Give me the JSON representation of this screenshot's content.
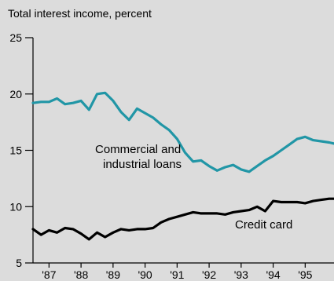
{
  "chart_data": {
    "type": "line",
    "title": "",
    "ylabel": "Total interest income, percent",
    "xlabel": "",
    "ylim": [
      5,
      25
    ],
    "xlim": [
      1986.5,
      1995.9
    ],
    "yticks": [
      5,
      10,
      15,
      20,
      25
    ],
    "xticks": [
      {
        "label": "'87",
        "value": 1987
      },
      {
        "label": "'88",
        "value": 1988
      },
      {
        "label": "'89",
        "value": 1989
      },
      {
        "label": "'90",
        "value": 1990
      },
      {
        "label": "'91",
        "value": 1991
      },
      {
        "label": "'92",
        "value": 1992
      },
      {
        "label": "'93",
        "value": 1993
      },
      {
        "label": "'94",
        "value": 1994
      },
      {
        "label": "'95",
        "value": 1995
      }
    ],
    "grid": false,
    "legend": "none",
    "series": [
      {
        "name": "Commercial and industrial loans",
        "label_lines": [
          "Commercial and",
          "industrial loans"
        ],
        "color": "#2196a6",
        "x": [
          1986.5,
          1986.75,
          1987.0,
          1987.25,
          1987.5,
          1987.75,
          1988.0,
          1988.25,
          1988.5,
          1988.75,
          1989.0,
          1989.25,
          1989.5,
          1989.75,
          1990.0,
          1990.25,
          1990.5,
          1990.75,
          1991.0,
          1991.25,
          1991.5,
          1991.75,
          1992.0,
          1992.25,
          1992.5,
          1992.75,
          1993.0,
          1993.25,
          1993.5,
          1993.75,
          1994.0,
          1994.25,
          1994.5,
          1994.75,
          1995.0,
          1995.25,
          1995.5,
          1995.75,
          1995.9
        ],
        "y": [
          19.2,
          19.3,
          19.3,
          19.6,
          19.1,
          19.2,
          19.4,
          18.6,
          20.0,
          20.1,
          19.4,
          18.4,
          17.7,
          18.7,
          18.3,
          17.9,
          17.3,
          16.8,
          16.0,
          14.8,
          14.0,
          14.1,
          13.6,
          13.2,
          13.5,
          13.7,
          13.3,
          13.1,
          13.6,
          14.1,
          14.5,
          15.0,
          15.5,
          16.0,
          16.2,
          15.9,
          15.8,
          15.7,
          15.6
        ]
      },
      {
        "name": "Credit card",
        "label_lines": [
          "Credit card"
        ],
        "color": "#000000",
        "x": [
          1986.5,
          1986.75,
          1987.0,
          1987.25,
          1987.5,
          1987.75,
          1988.0,
          1988.25,
          1988.5,
          1988.75,
          1989.0,
          1989.25,
          1989.5,
          1989.75,
          1990.0,
          1990.25,
          1990.5,
          1990.75,
          1991.0,
          1991.25,
          1991.5,
          1991.75,
          1992.0,
          1992.25,
          1992.5,
          1992.75,
          1993.0,
          1993.25,
          1993.5,
          1993.75,
          1994.0,
          1994.25,
          1994.5,
          1994.75,
          1995.0,
          1995.25,
          1995.5,
          1995.75,
          1995.9
        ],
        "y": [
          8.0,
          7.5,
          7.9,
          7.7,
          8.1,
          8.0,
          7.6,
          7.1,
          7.7,
          7.3,
          7.7,
          8.0,
          7.9,
          8.0,
          8.0,
          8.1,
          8.6,
          8.9,
          9.1,
          9.3,
          9.5,
          9.4,
          9.4,
          9.4,
          9.3,
          9.5,
          9.6,
          9.7,
          10.0,
          9.6,
          10.5,
          10.4,
          10.4,
          10.4,
          10.3,
          10.5,
          10.6,
          10.7,
          10.7
        ]
      }
    ]
  }
}
